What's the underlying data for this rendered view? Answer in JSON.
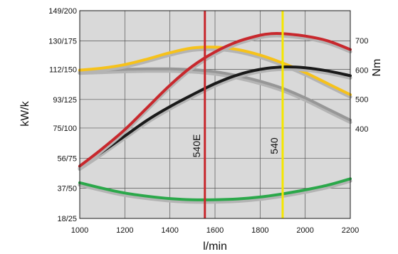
{
  "chart_data": {
    "type": "line",
    "xlabel": "l/min",
    "ylabel_left": "kW/k",
    "ylabel_right": "Nm",
    "xlim": [
      1000,
      2200
    ],
    "x_ticks": [
      "1000",
      "1200",
      "1400",
      "1600",
      "1800",
      "2000",
      "2200"
    ],
    "y_left_ticks": [
      {
        "value": 18,
        "label": "18/25"
      },
      {
        "value": 37,
        "label": "37/50"
      },
      {
        "value": 56,
        "label": "56/75"
      },
      {
        "value": 75,
        "label": "75/100"
      },
      {
        "value": 93,
        "label": "93/125"
      },
      {
        "value": 112,
        "label": "112/150"
      },
      {
        "value": 130,
        "label": "130/175"
      },
      {
        "value": 149,
        "label": "149/200"
      }
    ],
    "y_right_ticks": [
      {
        "value": 400,
        "label": "400"
      },
      {
        "value": 500,
        "label": "500"
      },
      {
        "value": 600,
        "label": "600"
      },
      {
        "value": 700,
        "label": "700"
      }
    ],
    "grid": true,
    "background": "#d9d9d9",
    "vertical_markers": [
      {
        "label": "540E",
        "x": 1555,
        "color": "#c8282d"
      },
      {
        "label": "540",
        "x": 1900,
        "color": "#f5e600"
      }
    ],
    "series": [
      {
        "color": "#f6c21b",
        "shadow": true,
        "x": [
          1000,
          1100,
          1200,
          1300,
          1400,
          1500,
          1600,
          1700,
          1800,
          1900,
          2000,
          2100,
          2200
        ],
        "y": [
          111.5,
          112.8,
          115,
          118.5,
          122.5,
          125.5,
          126,
          124.5,
          121,
          116,
          110,
          103,
          96
        ]
      },
      {
        "color": "#c8282d",
        "shadow": true,
        "x": [
          1000,
          1100,
          1200,
          1300,
          1400,
          1500,
          1600,
          1700,
          1800,
          1850,
          1900,
          2000,
          2100,
          2200
        ],
        "y": [
          51,
          62,
          74,
          88,
          102,
          114,
          123,
          129.5,
          133.5,
          134.5,
          134.5,
          133,
          130,
          124.5
        ]
      },
      {
        "color": "#1a1a1a",
        "shadow": true,
        "x": [
          1000,
          1100,
          1200,
          1300,
          1400,
          1500,
          1600,
          1700,
          1800,
          1900,
          2000,
          2100,
          2200
        ],
        "y": [
          50.5,
          60,
          70,
          80,
          88.5,
          96,
          103,
          108.5,
          112,
          113.5,
          113,
          111,
          108
        ]
      },
      {
        "color": "#979797",
        "shadow": true,
        "x": [
          1000,
          1100,
          1200,
          1300,
          1400,
          1500,
          1600,
          1700,
          1800,
          1900,
          2000,
          2100,
          2200
        ],
        "y": [
          111,
          111.5,
          112,
          112.3,
          112.3,
          111.8,
          110.5,
          108,
          104.5,
          100,
          94,
          87,
          80
        ]
      },
      {
        "color": "#2ba84a",
        "shadow": true,
        "x": [
          1000,
          1100,
          1200,
          1300,
          1400,
          1500,
          1600,
          1700,
          1800,
          1900,
          2000,
          2100,
          2200
        ],
        "y": [
          40.5,
          37,
          34,
          32,
          30.5,
          29.8,
          29.8,
          30.3,
          31.5,
          33.5,
          36,
          39,
          43
        ]
      }
    ]
  }
}
